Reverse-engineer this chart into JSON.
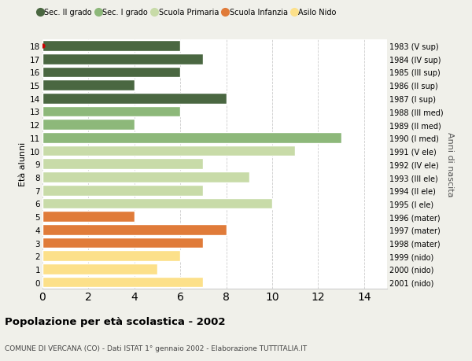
{
  "ages": [
    0,
    1,
    2,
    3,
    4,
    5,
    6,
    7,
    8,
    9,
    10,
    11,
    12,
    13,
    14,
    15,
    16,
    17,
    18
  ],
  "years": [
    "2001 (nido)",
    "2000 (nido)",
    "1999 (nido)",
    "1998 (mater)",
    "1997 (mater)",
    "1996 (mater)",
    "1995 (I ele)",
    "1994 (II ele)",
    "1993 (III ele)",
    "1992 (IV ele)",
    "1991 (V ele)",
    "1990 (I med)",
    "1989 (II med)",
    "1988 (III med)",
    "1987 (I sup)",
    "1986 (II sup)",
    "1985 (III sup)",
    "1984 (IV sup)",
    "1983 (V sup)"
  ],
  "values": [
    7,
    5,
    6,
    7,
    8,
    4,
    10,
    7,
    9,
    7,
    11,
    13,
    4,
    6,
    8,
    4,
    6,
    7,
    6
  ],
  "colors": [
    "#fce08a",
    "#fce08a",
    "#fce08a",
    "#e07b39",
    "#e07b39",
    "#e07b39",
    "#c8dba8",
    "#c8dba8",
    "#c8dba8",
    "#c8dba8",
    "#c8dba8",
    "#8db87a",
    "#8db87a",
    "#8db87a",
    "#4a6741",
    "#4a6741",
    "#4a6741",
    "#4a6741",
    "#4a6741"
  ],
  "categories": [
    "Sec. II grado",
    "Sec. I grado",
    "Scuola Primaria",
    "Scuola Infanzia",
    "Asilo Nido"
  ],
  "cat_colors": [
    "#4a6741",
    "#8db87a",
    "#c8dba8",
    "#e07b39",
    "#fce08a"
  ],
  "ylabel": "Età alunni",
  "right_label": "Anni di nascita",
  "title": "Popolazione per età scolastica - 2002",
  "subtitle": "COMUNE DI VERCANA (CO) - Dati ISTAT 1° gennaio 2002 - Elaborazione TUTTITALIA.IT",
  "xlim": [
    0,
    15
  ],
  "xticks": [
    0,
    2,
    4,
    6,
    8,
    10,
    12,
    14
  ],
  "background_color": "#f0f0ea",
  "bar_background": "#ffffff",
  "red_dot_age": 18,
  "grid_color": "#cccccc"
}
